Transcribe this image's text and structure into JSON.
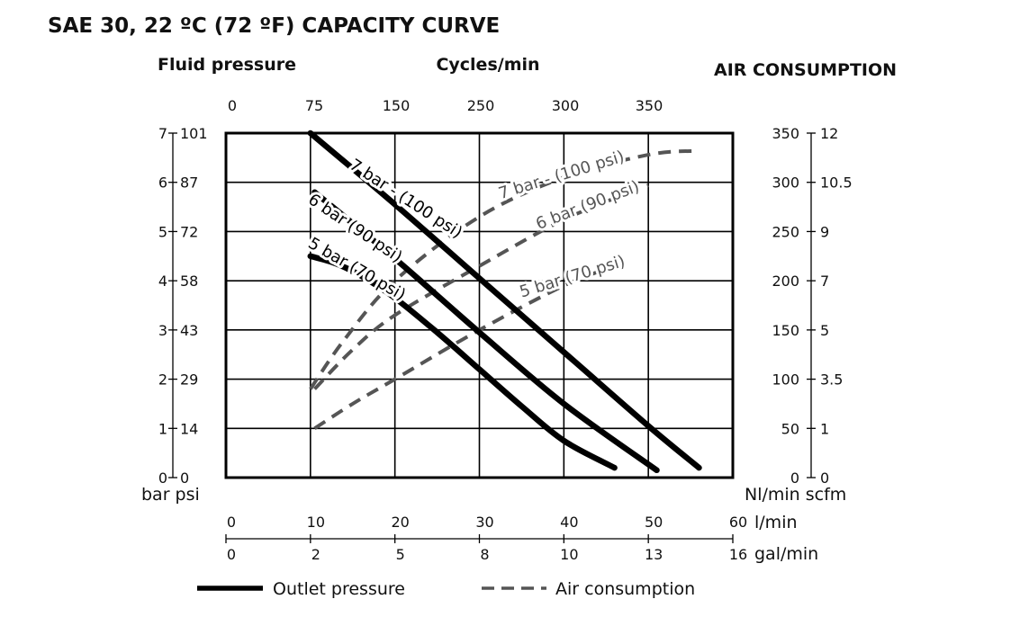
{
  "chart_data": {
    "type": "line",
    "title": "SAE 30, 22 ºC (72 ºF) CAPACITY CURVE",
    "axes": {
      "left": {
        "label": "Fluid pressure",
        "units": "bar psi",
        "ticks_bar": [
          "0",
          "1",
          "2",
          "3",
          "4",
          "5",
          "6",
          "7"
        ],
        "ticks_psi": [
          "0",
          "14",
          "29",
          "43",
          "58",
          "72",
          "87",
          "101"
        ],
        "range_bar": [
          0,
          7
        ]
      },
      "top": {
        "label": "Cycles/min",
        "ticks": [
          "0",
          "75",
          "150",
          "250",
          "300",
          "350"
        ]
      },
      "right": {
        "label": "AIR CONSUMPTION",
        "units": "Nl/min scfm",
        "ticks_nlmin": [
          "0",
          "50",
          "100",
          "150",
          "200",
          "250",
          "300",
          "350"
        ],
        "ticks_scfm": [
          "0",
          "1",
          "3.5",
          "5",
          "7",
          "9",
          "10.5",
          "12"
        ],
        "range_nlmin": [
          0,
          350
        ]
      },
      "bottom_lmin": {
        "units": "l/min",
        "ticks": [
          "0",
          "10",
          "20",
          "30",
          "40",
          "50",
          "60"
        ],
        "range": [
          0,
          60
        ]
      },
      "bottom_galmin": {
        "units": "gal/min",
        "ticks": [
          "0",
          "2",
          "5",
          "8",
          "10",
          "13",
          "16"
        ]
      }
    },
    "grid": true,
    "outlet_pressure": [
      {
        "label": "7 bar - (100 psi)",
        "x": [
          10,
          20,
          30,
          40,
          50,
          56
        ],
        "y": [
          7.0,
          5.55,
          4.05,
          2.55,
          1.05,
          0.2
        ]
      },
      {
        "label": "6 bar (90 psi)",
        "x": [
          10.5,
          20,
          30,
          40,
          51
        ],
        "y": [
          5.8,
          4.45,
          2.95,
          1.5,
          0.15
        ]
      },
      {
        "label": "5 bar (70 psi)",
        "x": [
          10,
          13,
          16,
          20,
          25,
          30,
          35,
          40,
          46
        ],
        "y": [
          4.5,
          4.35,
          4.1,
          3.65,
          2.95,
          2.2,
          1.45,
          0.75,
          0.2
        ]
      }
    ],
    "air_consumption": [
      {
        "label": "7 bar - (100 psi)",
        "x": [
          10,
          14,
          20,
          30,
          40,
          50,
          56
        ],
        "y": [
          90,
          140,
          200,
          265,
          305,
          328,
          332
        ]
      },
      {
        "label": "6 bar (90 psi)",
        "x": [
          10.5,
          15,
          20,
          30,
          40,
          50
        ],
        "y": [
          90,
          130,
          165,
          215,
          262,
          297
        ]
      },
      {
        "label": "5 bar (70 psi)",
        "x": [
          10.5,
          15,
          20,
          30,
          40,
          46
        ],
        "y": [
          50,
          75,
          100,
          150,
          195,
          215
        ]
      }
    ],
    "legend": {
      "placement": "bottom",
      "items": [
        {
          "label": "Outlet pressure",
          "style": "solid"
        },
        {
          "label": "Air consumption",
          "style": "dashed"
        }
      ]
    },
    "colors": {
      "outlet": "#000000",
      "air": "#555555",
      "grid": "#000000"
    }
  }
}
